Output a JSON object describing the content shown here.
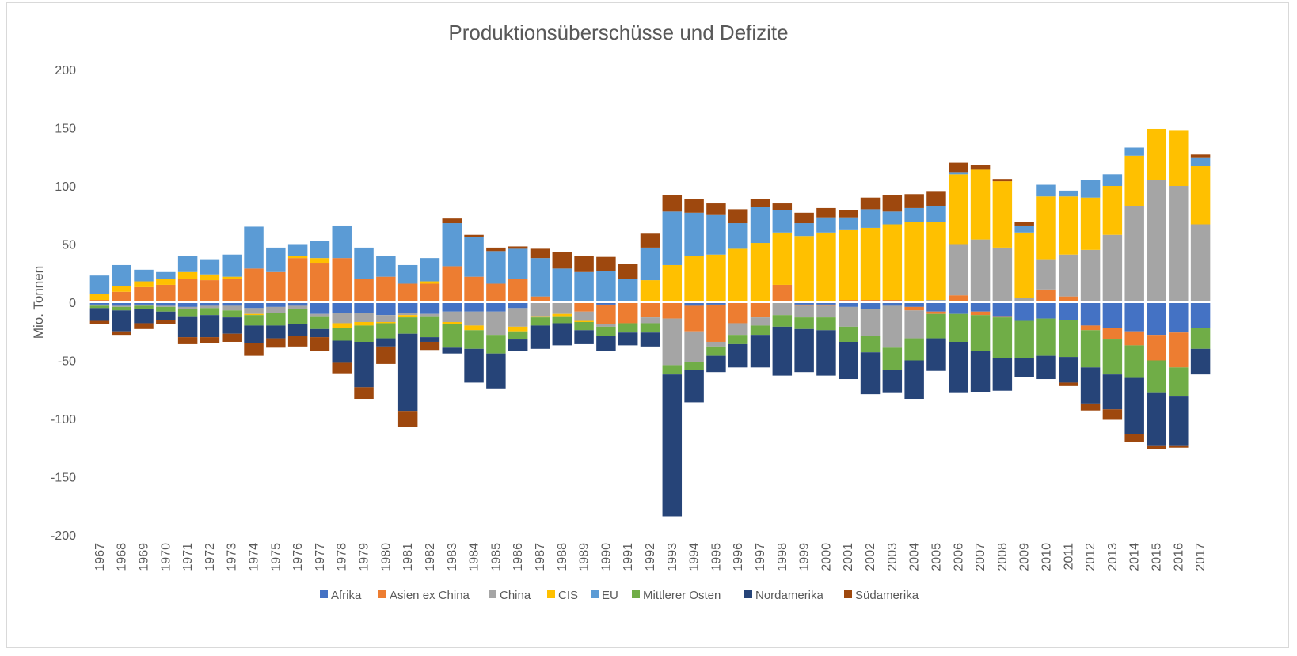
{
  "chart_data": {
    "type": "bar",
    "stacked": true,
    "title": "Produktionsüberschüsse und Defizite",
    "xlabel": "",
    "ylabel": "Mio. Tonnen",
    "ylim": [
      -200,
      200
    ],
    "yticks": [
      200,
      150,
      100,
      50,
      0,
      -50,
      -100,
      -150,
      -200
    ],
    "grid": false,
    "legend_position": "bottom",
    "categories": [
      "1967",
      "1968",
      "1969",
      "1970",
      "1971",
      "1972",
      "1973",
      "1974",
      "1975",
      "1976",
      "1977",
      "1978",
      "1979",
      "1980",
      "1981",
      "1982",
      "1983",
      "1984",
      "1985",
      "1986",
      "1987",
      "1988",
      "1989",
      "1990",
      "1991",
      "1992",
      "1993",
      "1994",
      "1995",
      "1996",
      "1997",
      "1998",
      "1999",
      "2000",
      "2001",
      "2002",
      "2003",
      "2004",
      "2005",
      "2006",
      "2007",
      "2008",
      "2009",
      "2010",
      "2011",
      "2012",
      "2013",
      "2014",
      "2015",
      "2016",
      "2017"
    ],
    "series": [
      {
        "name": "Afrika",
        "color": "#4472C4",
        "values": [
          -2,
          -3,
          -2,
          -3,
          -4,
          -3,
          -3,
          -5,
          -4,
          -3,
          -10,
          -9,
          -9,
          -11,
          -9,
          -10,
          -8,
          -8,
          -8,
          -5,
          0,
          0,
          0,
          -2,
          0,
          0,
          0,
          -3,
          -2,
          0,
          0,
          0,
          -2,
          -2,
          -4,
          -6,
          -3,
          -4,
          -8,
          -10,
          -8,
          -12,
          -16,
          -14,
          -15,
          -20,
          -22,
          -25,
          -28,
          -26,
          -22
        ]
      },
      {
        "name": "Asien ex China",
        "color": "#ED7D31",
        "values": [
          2,
          9,
          13,
          15,
          20,
          19,
          20,
          29,
          26,
          38,
          34,
          38,
          20,
          22,
          16,
          16,
          31,
          22,
          16,
          20,
          5,
          0,
          -8,
          -17,
          -18,
          -13,
          -14,
          -22,
          -32,
          -18,
          -13,
          15,
          -1,
          -1,
          2,
          2,
          2,
          -3,
          -2,
          6,
          -3,
          -1,
          0,
          11,
          5,
          -4,
          -10,
          -12,
          -22,
          -30,
          0
        ]
      },
      {
        "name": "China",
        "color": "#A5A5A5",
        "values": [
          -1,
          -1,
          -1,
          -1,
          -2,
          -2,
          -4,
          -5,
          -5,
          -3,
          -2,
          -9,
          -8,
          -6,
          -2,
          -2,
          -9,
          -12,
          -20,
          -16,
          -12,
          -10,
          -8,
          -2,
          0,
          -5,
          -40,
          -26,
          -4,
          -10,
          -7,
          -11,
          -10,
          -10,
          -17,
          -23,
          -36,
          -24,
          2,
          44,
          54,
          47,
          4,
          26,
          36,
          45,
          58,
          83,
          105,
          100,
          67
        ]
      },
      {
        "name": "CIS",
        "color": "#FFC000",
        "values": [
          5,
          5,
          5,
          5,
          6,
          5,
          2,
          -1,
          0,
          2,
          4,
          -4,
          -3,
          -1,
          -2,
          2,
          -2,
          -4,
          0,
          -4,
          -1,
          -2,
          -1,
          0,
          0,
          19,
          32,
          40,
          41,
          46,
          51,
          45,
          57,
          60,
          60,
          62,
          65,
          69,
          67,
          60,
          60,
          57,
          56,
          54,
          50,
          45,
          42,
          43,
          44,
          48,
          50
        ]
      },
      {
        "name": "EU",
        "color": "#5B9BD5",
        "values": [
          16,
          18,
          10,
          6,
          14,
          13,
          19,
          36,
          21,
          10,
          15,
          28,
          27,
          18,
          16,
          20,
          37,
          34,
          28,
          26,
          33,
          29,
          26,
          27,
          20,
          28,
          46,
          37,
          34,
          22,
          31,
          19,
          11,
          13,
          11,
          16,
          11,
          12,
          14,
          2,
          0,
          0,
          6,
          10,
          5,
          15,
          10,
          7,
          0,
          0,
          7
        ]
      },
      {
        "name": "Mittlerer Osten",
        "color": "#70AD47",
        "values": [
          -2,
          -3,
          -3,
          -4,
          -6,
          -6,
          -6,
          -9,
          -11,
          -13,
          -11,
          -11,
          -14,
          -13,
          -14,
          -18,
          -20,
          -16,
          -16,
          -7,
          -7,
          -6,
          -7,
          -8,
          -8,
          -8,
          -8,
          -7,
          -8,
          -8,
          -8,
          -10,
          -10,
          -11,
          -13,
          -14,
          -19,
          -19,
          -21,
          -24,
          -31,
          -35,
          -32,
          -32,
          -32,
          -32,
          -30,
          -28,
          -28,
          -25,
          -18
        ]
      },
      {
        "name": "Nordamerika",
        "color": "#264478",
        "values": [
          -11,
          -18,
          -12,
          -7,
          -18,
          -19,
          -14,
          -15,
          -11,
          -10,
          -7,
          -19,
          -39,
          -7,
          -67,
          -4,
          -5,
          -29,
          -30,
          -10,
          -20,
          -19,
          -12,
          -13,
          -11,
          -12,
          -122,
          -28,
          -14,
          -20,
          -28,
          -42,
          -37,
          -39,
          -32,
          -36,
          -20,
          -33,
          -28,
          -44,
          -35,
          -28,
          -16,
          -20,
          -22,
          -31,
          -30,
          -48,
          -45,
          -42,
          -22
        ]
      },
      {
        "name": "Südamerika",
        "color": "#9E480E",
        "values": [
          -3,
          -3,
          -5,
          -4,
          -6,
          -5,
          -7,
          -11,
          -8,
          -9,
          -12,
          -9,
          -10,
          -15,
          -13,
          -7,
          4,
          2,
          3,
          2,
          8,
          14,
          14,
          12,
          13,
          12,
          14,
          12,
          10,
          12,
          7,
          6,
          9,
          8,
          6,
          10,
          14,
          12,
          12,
          8,
          4,
          2,
          3,
          0,
          -3,
          -6,
          -9,
          -7,
          -3,
          -2,
          3
        ]
      }
    ]
  },
  "legend": [
    {
      "label": "Afrika",
      "color": "#4472C4"
    },
    {
      "label": "Asien ex China",
      "color": "#ED7D31"
    },
    {
      "label": "China",
      "color": "#A5A5A5"
    },
    {
      "label": "CIS",
      "color": "#FFC000"
    },
    {
      "label": "EU",
      "color": "#5B9BD5"
    },
    {
      "label": "Mittlerer Osten",
      "color": "#70AD47"
    },
    {
      "label": "Nordamerika",
      "color": "#264478"
    },
    {
      "label": "Südamerika",
      "color": "#9E480E"
    }
  ]
}
